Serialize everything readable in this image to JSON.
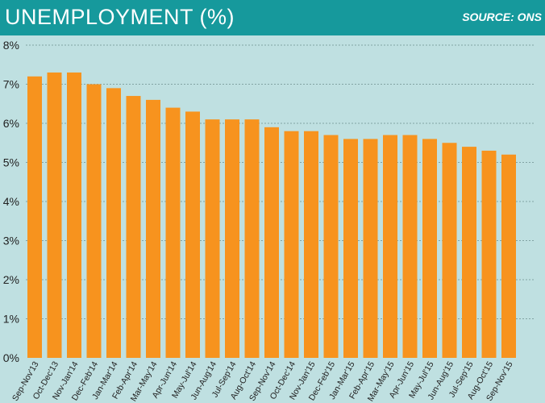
{
  "header": {
    "title": "UNEMPLOYMENT (%)",
    "source": "SOURCE: ONS"
  },
  "colors": {
    "header_bg": "#16999c",
    "plot_bg": "#bfe0e1",
    "bar": "#f7931e",
    "text": "#222222"
  },
  "chart_data": {
    "type": "bar",
    "title": "UNEMPLOYMENT (%)",
    "xlabel": "",
    "ylabel": "",
    "ylim": [
      0,
      8
    ],
    "yticks": [
      0,
      1,
      2,
      3,
      4,
      5,
      6,
      7,
      8
    ],
    "ytick_labels": [
      "0%",
      "1%",
      "2%",
      "3%",
      "4%",
      "5%",
      "6%",
      "7%",
      "8%"
    ],
    "grid": true,
    "legend": "none",
    "categories": [
      "Sep-Nov'13",
      "Oct-Dec'13",
      "Nov-Jan'14",
      "Dec-Feb'14",
      "Jan-Mar'14",
      "Feb-Apr'14",
      "Mar-May'14",
      "Apr-Jun'14",
      "May-Jul'14",
      "Jun-Aug'14",
      "Jul-Sep'14",
      "Aug-Oct'14",
      "Sep-Nov'14",
      "Oct-Dec'14",
      "Nov-Jan'15",
      "Dec-Feb'15",
      "Jan-Mar'15",
      "Feb-Apr'15",
      "Mar-May'15",
      "Apr-Jun'15",
      "May-Jul'15",
      "Jun-Aug'15",
      "Jul-Sep'15",
      "Aug-Oct'15",
      "Sep-Nov'15"
    ],
    "values": [
      7.2,
      7.3,
      7.3,
      7.0,
      6.9,
      6.7,
      6.6,
      6.4,
      6.3,
      6.1,
      6.1,
      6.1,
      5.9,
      5.8,
      5.8,
      5.7,
      5.6,
      5.6,
      5.7,
      5.7,
      5.6,
      5.5,
      5.4,
      5.3,
      5.2
    ]
  }
}
